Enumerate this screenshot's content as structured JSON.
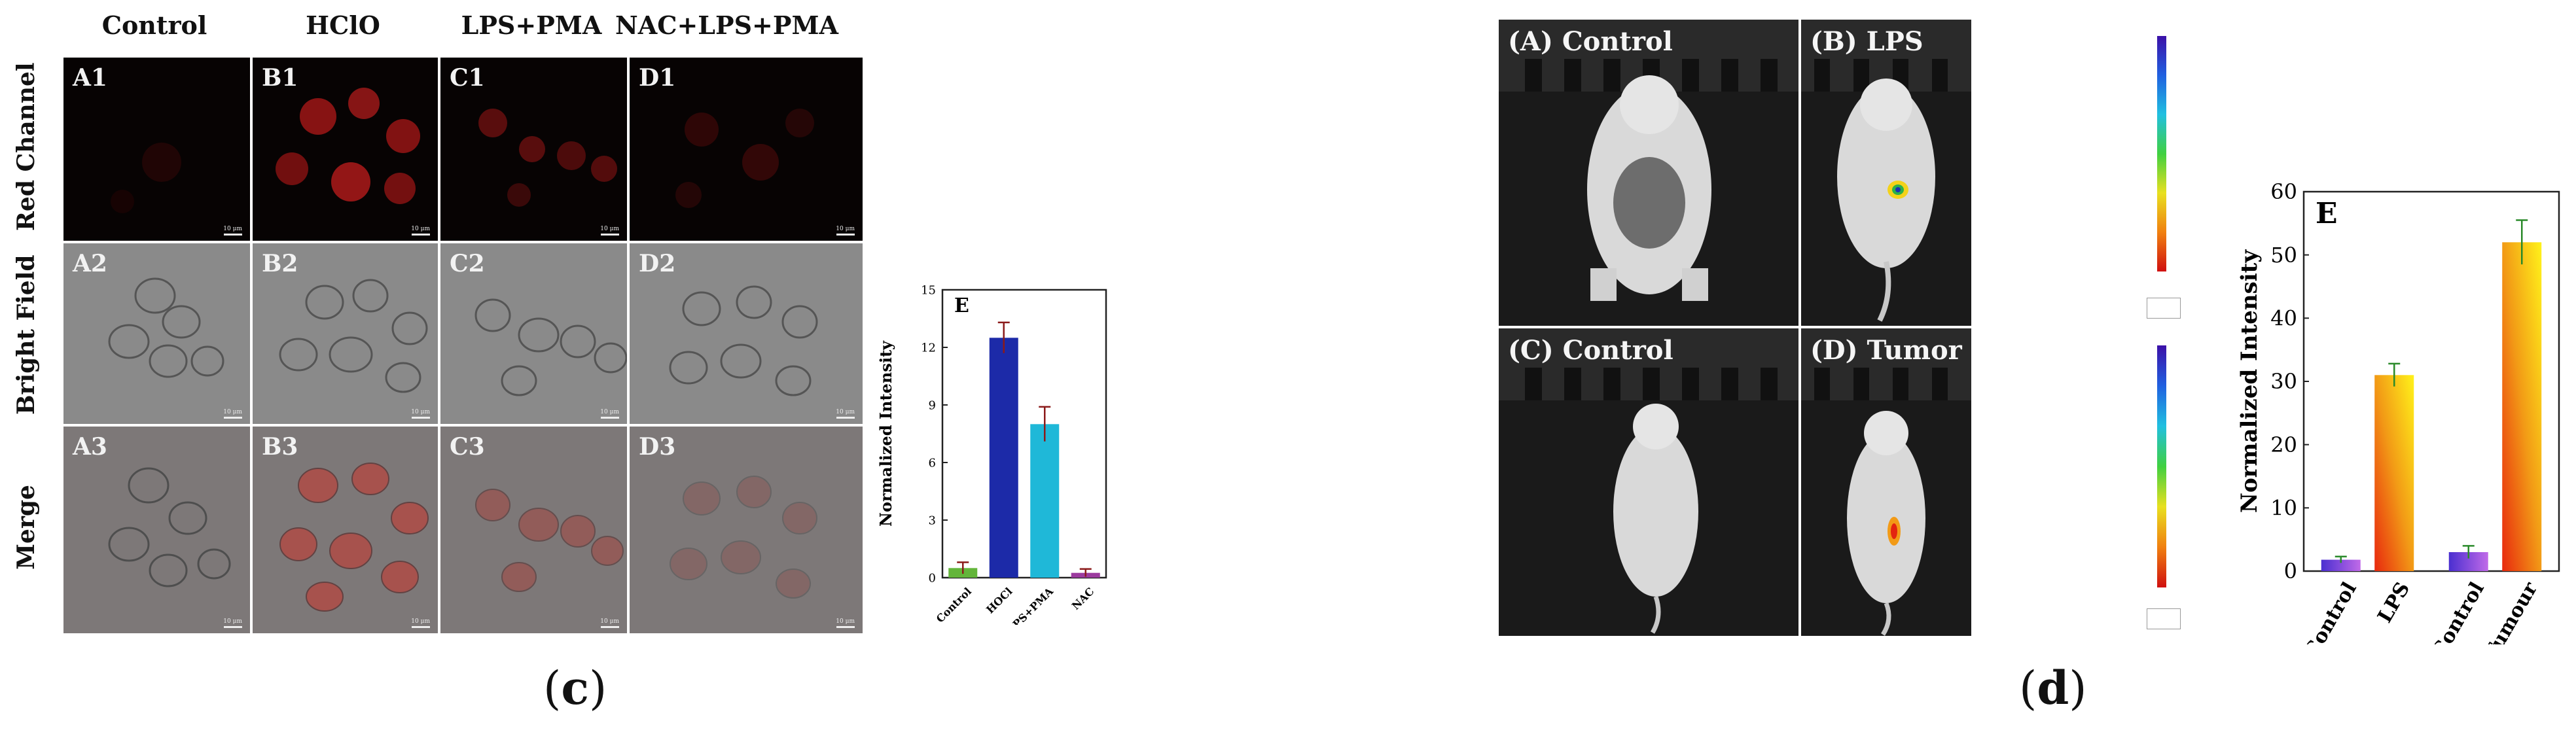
{
  "panel_c": {
    "caption_letter": "c",
    "column_headers": [
      "Control",
      "HClO",
      "LPS+PMA",
      "NAC+LPS+PMA"
    ],
    "row_headers": [
      "Red Channel",
      "Bright Field",
      "Merge"
    ],
    "cell_labels": [
      [
        "A1",
        "B1",
        "C1",
        "D1"
      ],
      [
        "A2",
        "B2",
        "C2",
        "D2"
      ],
      [
        "A3",
        "B3",
        "C3",
        "D3"
      ]
    ],
    "scale_text": "10 μm"
  },
  "panel_d": {
    "caption_letter": "d",
    "image_labels": [
      "(A) Control",
      "(B) LPS",
      "(C) Control",
      "(D) Tumor"
    ]
  },
  "chart_data": [
    {
      "type": "bar",
      "panel_letter": "E",
      "categories": [
        "Control",
        "HOCl",
        "LPS+PMA",
        "NAC"
      ],
      "values": [
        0.5,
        12.5,
        8.0,
        0.25
      ],
      "errors": [
        0.3,
        0.8,
        0.9,
        0.2
      ],
      "colors": [
        "#63b53a",
        "#1c2aa8",
        "#1fb8d8",
        "#9b3b9e"
      ],
      "title": "",
      "xlabel": "",
      "ylabel": "Normalized Intensity",
      "ylim": [
        0,
        15
      ],
      "yticks": [
        0,
        3,
        6,
        9,
        12,
        15
      ]
    },
    {
      "type": "bar",
      "panel_letter": "E",
      "categories": [
        "Control",
        "LPS",
        "Control",
        "Tumour"
      ],
      "values": [
        1.8,
        31,
        3.0,
        52
      ],
      "errors": [
        0.5,
        1.8,
        1.0,
        3.5
      ],
      "colors": [
        "#8a4fd6",
        "#f29a16",
        "#8a4fd6",
        "#f29a16"
      ],
      "title": "",
      "xlabel": "",
      "ylabel": "Normalized Intensity",
      "ylim": [
        0,
        60
      ],
      "yticks": [
        0,
        10,
        20,
        30,
        40,
        50,
        60
      ]
    }
  ]
}
